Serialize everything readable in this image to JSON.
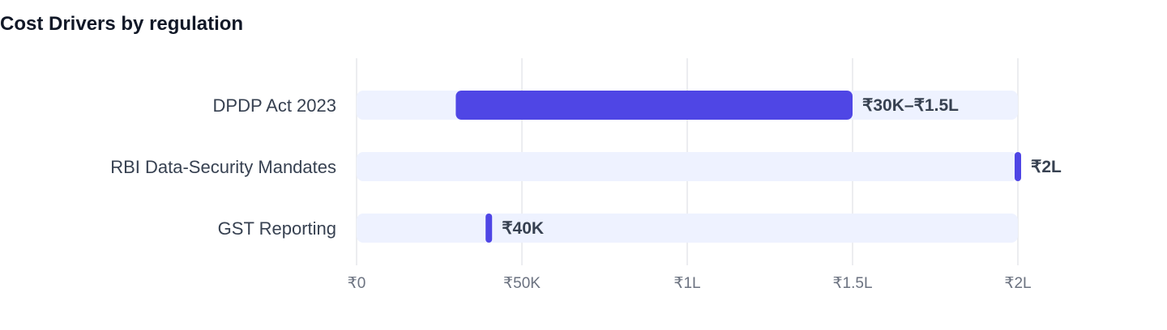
{
  "chart_data": {
    "type": "bar",
    "orientation": "horizontal",
    "title": "Cost Drivers by regulation",
    "xlabel": "",
    "ylabel": "",
    "xlim": [
      0,
      200000
    ],
    "grid": true,
    "categories": [
      "DPDP Act 2023",
      "RBI Data-Security Mandates",
      "GST Reporting"
    ],
    "ranges": [
      {
        "low": 30000,
        "high": 150000,
        "label": "₹30K–₹1.5L"
      },
      {
        "low": 200000,
        "high": 200000,
        "label": "₹2L"
      },
      {
        "low": 40000,
        "high": 40000,
        "label": "₹40K"
      }
    ],
    "x_ticks": [
      {
        "value": 0,
        "label": "₹0"
      },
      {
        "value": 50000,
        "label": "₹50K"
      },
      {
        "value": 100000,
        "label": "₹1L"
      },
      {
        "value": 150000,
        "label": "₹1.5L"
      },
      {
        "value": 200000,
        "label": "₹2L"
      }
    ],
    "colors": {
      "bar": "#4f46e5",
      "track": "#eef2ff",
      "grid": "#e5e7eb"
    }
  }
}
